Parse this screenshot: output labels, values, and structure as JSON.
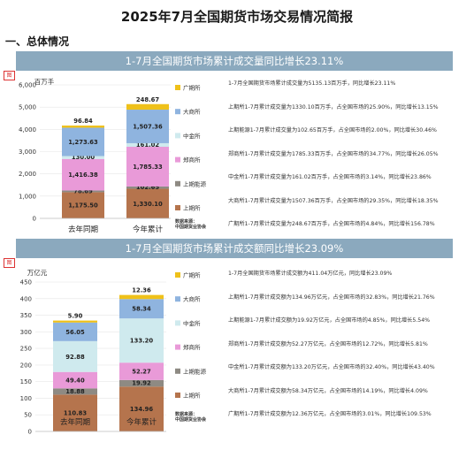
{
  "page": {
    "title": "2025年7月全国期货市场交易情况简报",
    "section": "一、总体情况"
  },
  "charts": [
    {
      "banner": "1-7月全国期货市场累计成交量同比增长23.11%",
      "marker": "图",
      "notes": [
        "1-7月全国期货市场累计成交量为5135.13百万手，同比增长23.11%",
        "上期所1-7月累计成交量为1330.10百万手，占全国市场的25.90%，同比增长13.15%",
        "上期能源1-7月累计成交量为102.65百万手，占全国市场的2.00%，同比增长30.46%",
        "郑商所1-7月累计成交量为1785.33百万手，占全国市场的34.77%，同比增长26.05%",
        "中金所1-7月累计成交量为161.02百万手，占全国市场的3.14%，同比增长23.86%",
        "大商所1-7月累计成交量为1507.36百万手，占全国市场的29.35%，同比增长18.35%",
        "广期所1-7月累计成交量为248.67百万手，占全国市场的4.84%，同比增长156.78%"
      ]
    },
    {
      "banner": "1-7月全国期货市场累计成交额同比增长23.09%",
      "marker": "图",
      "notes": [
        "1-7月全国期货市场累计成交额为411.04万亿元，同比增长23.09%",
        "上期所1-7月累计成交额为134.96万亿元，占全国市场的32.83%，同比增长21.76%",
        "上期能源1-7月累计成交额为19.92万亿元，占全国市场的4.85%，同比增长5.54%",
        "郑商所1-7月累计成交额为52.27万亿元，占全国市场的12.72%，同比增长5.81%",
        "中金所1-7月累计成交额为133.20万亿元，占全国市场的32.40%，同比增长43.40%",
        "大商所1-7月累计成交额为58.34万亿元，占全国市场的14.19%，同比增长4.09%",
        "广期所1-7月累计成交额为12.36万亿元，占全国市场的3.01%，同比增长109.53%"
      ]
    }
  ],
  "chart_data": [
    {
      "type": "bar",
      "stacked": true,
      "ylabel": "百万手",
      "ylim": [
        0,
        6000
      ],
      "yticks": [
        0,
        1000,
        2000,
        3000,
        4000,
        5000,
        6000
      ],
      "ytick_labels": [
        "0",
        "1,000",
        "2,000",
        "3,000",
        "4,000",
        "5,000",
        "6,000"
      ],
      "categories": [
        "去年同期",
        "今年累计"
      ],
      "series": [
        {
          "name": "上期所",
          "color": "#b5744d",
          "values": [
            1175.5,
            1330.1
          ],
          "labels": [
            "1,175.50",
            "1,330.10"
          ]
        },
        {
          "name": "上期能源",
          "color": "#8e8a83",
          "values": [
            78.69,
            102.65
          ],
          "labels": [
            "78.69",
            "102.65"
          ]
        },
        {
          "name": "郑商所",
          "color": "#e99ad8",
          "values": [
            1416.38,
            1785.33
          ],
          "labels": [
            "1,416.38",
            "1,785.33"
          ]
        },
        {
          "name": "中金所",
          "color": "#cfeaee",
          "values": [
            130.0,
            161.02
          ],
          "labels": [
            "130.00",
            "161.02"
          ]
        },
        {
          "name": "大商所",
          "color": "#8fb4df",
          "values": [
            1273.63,
            1507.36
          ],
          "labels": [
            "1,273.63",
            "1,507.36"
          ]
        },
        {
          "name": "广期所",
          "color": "#efc11a",
          "values": [
            96.84,
            248.67
          ],
          "labels": [
            "96.84",
            "248.67"
          ]
        }
      ],
      "source": "数据来源：\n中国期货业协会"
    },
    {
      "type": "bar",
      "stacked": true,
      "ylabel": "万亿元",
      "ylim": [
        0,
        450
      ],
      "yticks": [
        0,
        50,
        100,
        150,
        200,
        250,
        300,
        350,
        400,
        450
      ],
      "ytick_labels": [
        "0",
        "50",
        "100",
        "150",
        "200",
        "250",
        "300",
        "350",
        "400",
        "450"
      ],
      "categories": [
        "去年同期",
        "今年累计"
      ],
      "series": [
        {
          "name": "上期所",
          "color": "#b5744d",
          "values": [
            110.83,
            134.96
          ],
          "labels": [
            "110.83",
            "134.96"
          ]
        },
        {
          "name": "上期能源",
          "color": "#8e8a83",
          "values": [
            18.88,
            19.92
          ],
          "labels": [
            "18.88",
            "19.92"
          ]
        },
        {
          "name": "郑商所",
          "color": "#e99ad8",
          "values": [
            49.4,
            52.27
          ],
          "labels": [
            "49.40",
            "52.27"
          ]
        },
        {
          "name": "中金所",
          "color": "#cfeaee",
          "values": [
            92.88,
            133.2
          ],
          "labels": [
            "92.88",
            "133.20"
          ]
        },
        {
          "name": "大商所",
          "color": "#8fb4df",
          "values": [
            56.05,
            58.34
          ],
          "labels": [
            "56.05",
            "58.34"
          ]
        },
        {
          "name": "广期所",
          "color": "#efc11a",
          "values": [
            5.9,
            12.36
          ],
          "labels": [
            "5.90",
            "12.36"
          ]
        }
      ],
      "source": "数据来源：\n中国期货业协会"
    }
  ]
}
